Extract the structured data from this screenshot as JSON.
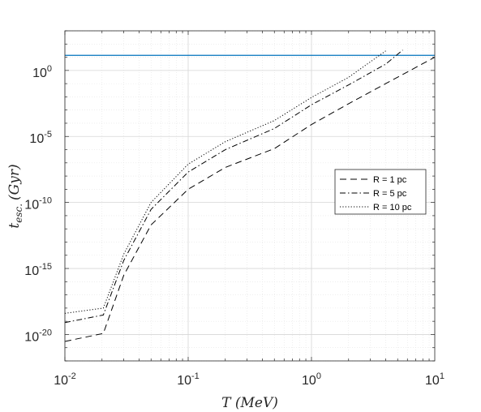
{
  "chart_data": {
    "type": "line",
    "title": "",
    "xlabel": "T (MeV)",
    "ylabel": "t_esc. (Gyr)",
    "xlabel_parts": {
      "var": "T",
      "unit": "(MeV)"
    },
    "ylabel_parts": {
      "var": "t",
      "sub": "esc.",
      "unit": "(Gyr)"
    },
    "xscale": "log",
    "yscale": "log",
    "xlim": [
      0.01,
      10
    ],
    "ylim": [
      1e-22,
      1000.0
    ],
    "grid": true,
    "minor_grid": true,
    "x_ticks": [
      {
        "value": 0.01,
        "base": "10",
        "exp": "-2"
      },
      {
        "value": 0.1,
        "base": "10",
        "exp": "-1"
      },
      {
        "value": 1,
        "base": "10",
        "exp": "0"
      },
      {
        "value": 10,
        "base": "10",
        "exp": "1"
      }
    ],
    "y_ticks": [
      {
        "value": 1,
        "base": "10",
        "exp": "0"
      },
      {
        "value": 1e-05,
        "base": "10",
        "exp": "-5"
      },
      {
        "value": 1e-10,
        "base": "10",
        "exp": "-10"
      },
      {
        "value": 1e-15,
        "base": "10",
        "exp": "-15"
      },
      {
        "value": 1e-20,
        "base": "10",
        "exp": "-20"
      }
    ],
    "hline": {
      "y": 13.8,
      "color": "#0072bd"
    },
    "legend": {
      "position": "right-middle"
    },
    "series": [
      {
        "name": "R = 1 pc",
        "dash": "dashed",
        "color": "#000000",
        "x": [
          0.01,
          0.0205,
          0.03,
          0.05,
          0.1,
          0.2,
          0.5,
          1,
          2,
          4,
          10
        ],
        "y": [
          3e-21,
          1.2e-20,
          3e-16,
          2e-12,
          1e-09,
          4.5e-08,
          1.2e-06,
          8e-05,
          0.003,
          0.1,
          10
        ]
      },
      {
        "name": "R = 5 pc",
        "dash": "dashdot",
        "color": "#000000",
        "x": [
          0.01,
          0.0205,
          0.03,
          0.05,
          0.1,
          0.2,
          0.5,
          1,
          2,
          4,
          5.5
        ],
        "y": [
          8e-20,
          3e-19,
          4e-15,
          3e-11,
          2e-08,
          1e-06,
          4e-05,
          0.0025,
          0.08,
          3,
          35
        ]
      },
      {
        "name": "R = 10 pc",
        "dash": "dotted",
        "color": "#000000",
        "x": [
          0.01,
          0.0205,
          0.03,
          0.05,
          0.1,
          0.2,
          0.5,
          1,
          2,
          4
        ],
        "y": [
          4e-19,
          1e-18,
          1.2e-14,
          1e-10,
          8e-08,
          4e-06,
          0.00016,
          0.009,
          0.3,
          30
        ]
      }
    ]
  }
}
